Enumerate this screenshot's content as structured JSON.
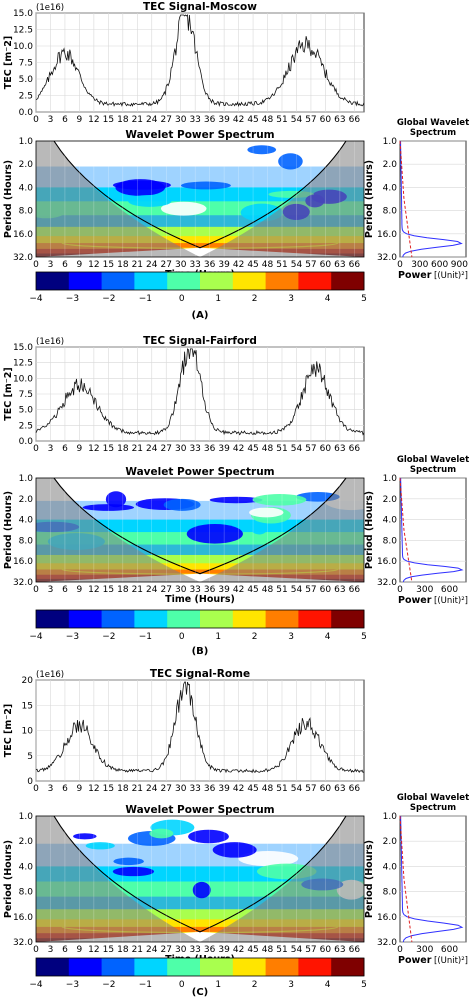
{
  "panels": [
    {
      "letter": "(A)",
      "tec_title": "TEC Signal-Moscow",
      "tec_ylabel": "TEC [m⁻2]",
      "offset_text": "(1e16)",
      "tec_yticks": [
        "0.0",
        "2.5",
        "5.0",
        "7.5",
        "10.0",
        "12.5",
        "15.0"
      ],
      "peaks": [
        {
          "c": 6,
          "h": 7.8,
          "w": 4
        },
        {
          "c": 31,
          "h": 13.5,
          "w": 3
        },
        {
          "c": 56,
          "h": 9.0,
          "w": 5
        }
      ],
      "base": 1.2,
      "wavelet_title": "Wavelet Power Spectrum",
      "time_label": "Time (Hours)",
      "period_label": "Period (Hours)",
      "gws_title": [
        "Global Wavelet",
        "Spectrum"
      ],
      "power_label": "Power",
      "power_unit": "[(Unit)²]",
      "gws_xticks": [
        "0",
        "300",
        "600",
        "900"
      ],
      "gws_xmax": 1000
    },
    {
      "letter": "(B)",
      "tec_title": "TEC Signal-Fairford",
      "tec_ylabel": "TEC [m⁻2]",
      "offset_text": "(1e16)",
      "tec_yticks": [
        "0.0",
        "2.5",
        "5.0",
        "7.5",
        "10.0",
        "12.5",
        "15.0"
      ],
      "peaks": [
        {
          "c": 9,
          "h": 7.5,
          "w": 5
        },
        {
          "c": 32,
          "h": 13.5,
          "w": 3
        },
        {
          "c": 58,
          "h": 10.0,
          "w": 4
        }
      ],
      "base": 1.3,
      "wavelet_title": "Wavelet Power Spectrum",
      "time_label": "Time (Hours)",
      "period_label": "Period (Hours)",
      "gws_title": [
        "Global Wavelet",
        "Spectrum"
      ],
      "power_label": "Power",
      "power_unit": "[(Unit)²]",
      "gws_xticks": [
        "0",
        "300",
        "600"
      ],
      "gws_xmax": 800
    },
    {
      "letter": "(C)",
      "tec_title": "TEC Signal-Rome",
      "tec_ylabel": "TEC [m⁻2]",
      "offset_text": "(1e16)",
      "tec_yticks": [
        "0",
        "5",
        "10",
        "15",
        "20"
      ],
      "peaks": [
        {
          "c": 9,
          "h": 9.0,
          "w": 4
        },
        {
          "c": 31,
          "h": 16.5,
          "w": 3
        },
        {
          "c": 56,
          "h": 9.5,
          "w": 4
        }
      ],
      "base": 2.0,
      "wavelet_title": "Wavelet Power Spectrum",
      "time_label": "Time (Hours)",
      "period_label": "Period (Hours)",
      "gws_title": [
        "Global Wavelet",
        "Spectrum"
      ],
      "power_label": "Power",
      "power_unit": "[(Unit)²]",
      "gws_xticks": [
        "0",
        "300",
        "600"
      ],
      "gws_xmax": 800
    }
  ],
  "shared": {
    "time_ticks": [
      "0",
      "3",
      "6",
      "9",
      "12",
      "15",
      "18",
      "21",
      "24",
      "27",
      "30",
      "33",
      "36",
      "39",
      "42",
      "45",
      "48",
      "51",
      "54",
      "57",
      "60",
      "63",
      "66"
    ],
    "period_ticks": [
      "1.0",
      "2.0",
      "4.0",
      "8.0",
      "16.0",
      "32.0"
    ],
    "colorbar_ticks": [
      "−4",
      "−3",
      "−2",
      "−1",
      "0",
      "1",
      "2",
      "3",
      "4",
      "5"
    ],
    "colorbar_colors": [
      "#00007f",
      "#0000ff",
      "#0063ff",
      "#00d5ff",
      "#4effa9",
      "#a9ff4e",
      "#ffe500",
      "#ff7e00",
      "#ff1400",
      "#7f0000"
    ],
    "gws_line_color": "#3030ff",
    "gws_sig_color": "#e02020"
  },
  "chart_data": [
    {
      "type": "line",
      "title": "TEC Signal-Moscow",
      "xlabel": "",
      "ylabel": "TEC [m⁻2]",
      "xlim": [
        0,
        68
      ],
      "ylim": [
        0,
        15
      ],
      "x_peaks_hours": [
        6,
        31,
        56
      ],
      "y_peaks": [
        7.8,
        13.5,
        9.0
      ]
    },
    {
      "type": "heatmap",
      "title": "Wavelet Power Spectrum",
      "xlabel": "Time (Hours)",
      "ylabel": "Period (Hours)",
      "colorbar_range": [
        -4,
        5
      ]
    },
    {
      "type": "line",
      "title": "TEC Signal-Fairford",
      "xlabel": "",
      "ylabel": "TEC [m⁻2]",
      "xlim": [
        0,
        68
      ],
      "ylim": [
        0,
        15
      ],
      "x_peaks_hours": [
        9,
        32,
        58
      ],
      "y_peaks": [
        7.5,
        13.5,
        10.0
      ]
    },
    {
      "type": "heatmap",
      "title": "Wavelet Power Spectrum",
      "xlabel": "Time (Hours)",
      "ylabel": "Period (Hours)",
      "colorbar_range": [
        -4,
        5
      ]
    },
    {
      "type": "line",
      "title": "TEC Signal-Rome",
      "xlabel": "",
      "ylabel": "TEC [m⁻2]",
      "xlim": [
        0,
        68
      ],
      "ylim": [
        0,
        20
      ],
      "x_peaks_hours": [
        9,
        31,
        56
      ],
      "y_peaks": [
        9.0,
        16.5,
        9.5
      ]
    },
    {
      "type": "heatmap",
      "title": "Wavelet Power Spectrum",
      "xlabel": "Time (Hours)",
      "ylabel": "Period (Hours)",
      "colorbar_range": [
        -4,
        5
      ]
    }
  ]
}
